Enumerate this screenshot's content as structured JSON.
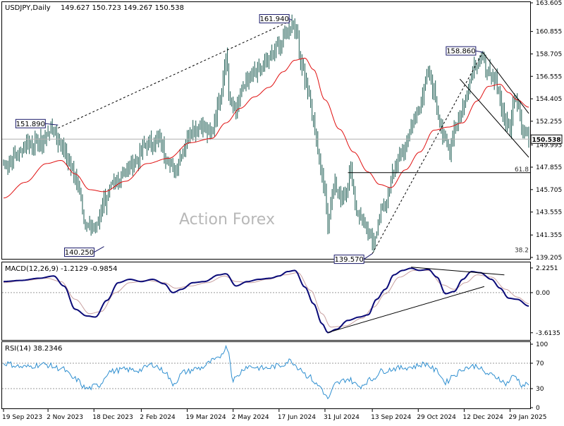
{
  "header": {
    "symbol_line": "USDJPY,Daily",
    "ohlc_line": "149.627 150.723 149.267 150.538"
  },
  "watermark": "Action Forex",
  "colors": {
    "candle": "#1a5a50",
    "ma": "#e01010",
    "macd": "#0a0a78",
    "signal": "#c8a0a0",
    "rsi": "#2f8fd0",
    "guide": "#000000",
    "axis_text": "#000000",
    "grid": "#c8c8c8"
  },
  "chart_data": [
    {
      "type": "line",
      "name": "price-panel",
      "title": "USDJPY,Daily",
      "indicator_label": "",
      "ylim": [
        139.205,
        163.6
      ],
      "y_ticks": [
        "163.605",
        "160.855",
        "158.705",
        "156.555",
        "154.405",
        "152.255",
        "149.995",
        "147.855",
        "145.705",
        "143.555",
        "141.355",
        "139.205"
      ],
      "current_value": "150.538",
      "x_labels": [
        "19 Sep 2023",
        "2 Nov 2023",
        "18 Dec 2023",
        "2 Feb 2024",
        "19 Mar 2024",
        "2 May 2024",
        "17 Jun 2024",
        "31 Jul 2024",
        "13 Sep 2024",
        "29 Oct 2024",
        "12 Dec 2024",
        "29 Jan 2025"
      ],
      "x_label_index": [
        0,
        31,
        63,
        96,
        128,
        160,
        192,
        224,
        257,
        289,
        321,
        353
      ],
      "bars": 367,
      "close_anchors": [
        [
          0,
          148.2
        ],
        [
          8,
          148.8
        ],
        [
          16,
          150.1
        ],
        [
          26,
          150.2
        ],
        [
          34,
          151.6
        ],
        [
          40,
          150.0
        ],
        [
          46,
          148.3
        ],
        [
          52,
          146.0
        ],
        [
          58,
          142.2
        ],
        [
          64,
          141.9
        ],
        [
          70,
          144.6
        ],
        [
          77,
          146.0
        ],
        [
          84,
          147.6
        ],
        [
          92,
          148.4
        ],
        [
          100,
          150.1
        ],
        [
          108,
          150.5
        ],
        [
          114,
          148.8
        ],
        [
          119,
          147.4
        ],
        [
          124,
          149.2
        ],
        [
          130,
          151.4
        ],
        [
          137,
          151.8
        ],
        [
          144,
          151.0
        ],
        [
          151,
          154.5
        ],
        [
          155,
          158.5
        ],
        [
          158,
          154.0
        ],
        [
          162,
          153.5
        ],
        [
          168,
          155.7
        ],
        [
          176,
          156.8
        ],
        [
          184,
          158.1
        ],
        [
          192,
          159.4
        ],
        [
          198,
          160.9
        ],
        [
          201,
          161.7
        ],
        [
          204,
          160.8
        ],
        [
          208,
          157.6
        ],
        [
          212,
          155.2
        ],
        [
          216,
          152.2
        ],
        [
          221,
          147.8
        ],
        [
          224,
          145.8
        ],
        [
          226,
          142.3
        ],
        [
          230,
          146.5
        ],
        [
          234,
          144.9
        ],
        [
          238,
          145.5
        ],
        [
          242,
          147.3
        ],
        [
          246,
          143.8
        ],
        [
          250,
          142.9
        ],
        [
          254,
          141.5
        ],
        [
          257,
          140.8
        ],
        [
          261,
          142.0
        ],
        [
          264,
          144.1
        ],
        [
          268,
          145.0
        ],
        [
          272,
          147.7
        ],
        [
          278,
          149.2
        ],
        [
          284,
          151.6
        ],
        [
          288,
          153.0
        ],
        [
          292,
          154.8
        ],
        [
          296,
          156.9
        ],
        [
          300,
          155.2
        ],
        [
          303,
          152.9
        ],
        [
          307,
          150.3
        ],
        [
          311,
          149.8
        ],
        [
          315,
          152.0
        ],
        [
          320,
          153.5
        ],
        [
          324,
          155.8
        ],
        [
          328,
          157.6
        ],
        [
          332,
          158.4
        ],
        [
          336,
          157.6
        ],
        [
          340,
          156.2
        ],
        [
          344,
          155.8
        ],
        [
          347,
          153.6
        ],
        [
          350,
          152.1
        ],
        [
          353,
          151.6
        ],
        [
          356,
          155.0
        ],
        [
          359,
          153.9
        ],
        [
          362,
          151.4
        ],
        [
          366,
          150.5
        ]
      ],
      "ma_anchors": [
        [
          0,
          144.9
        ],
        [
          15,
          146.4
        ],
        [
          30,
          148.2
        ],
        [
          40,
          148.5
        ],
        [
          50,
          147.2
        ],
        [
          60,
          145.7
        ],
        [
          70,
          145.5
        ],
        [
          85,
          146.5
        ],
        [
          100,
          148.2
        ],
        [
          115,
          148.7
        ],
        [
          130,
          150.2
        ],
        [
          145,
          150.6
        ],
        [
          155,
          152.1
        ],
        [
          165,
          153.5
        ],
        [
          175,
          154.6
        ],
        [
          185,
          155.5
        ],
        [
          195,
          157.0
        ],
        [
          203,
          158.1
        ],
        [
          210,
          158.3
        ],
        [
          216,
          157.2
        ],
        [
          224,
          154.3
        ],
        [
          234,
          151.5
        ],
        [
          244,
          149.3
        ],
        [
          254,
          147.4
        ],
        [
          262,
          146.2
        ],
        [
          270,
          145.9
        ],
        [
          280,
          147.6
        ],
        [
          290,
          149.3
        ],
        [
          300,
          151.4
        ],
        [
          310,
          151.7
        ],
        [
          320,
          152.1
        ],
        [
          330,
          154.2
        ],
        [
          338,
          155.6
        ],
        [
          346,
          155.8
        ],
        [
          352,
          155.0
        ],
        [
          358,
          154.3
        ],
        [
          366,
          153.6
        ]
      ],
      "annotations": [
        {
          "label": "161.940",
          "value": 161.94,
          "index": 201
        },
        {
          "label": "151.890",
          "value": 151.89,
          "index": 38
        },
        {
          "label": "140.250",
          "value": 140.25,
          "index": 70
        },
        {
          "label": "139.570",
          "value": 139.57,
          "index": 257
        },
        {
          "label": "158.860",
          "value": 158.86,
          "index": 334
        }
      ],
      "fib_labels": [
        {
          "label": "61.8",
          "value": 147.33
        },
        {
          "label": "38.2",
          "value": 139.57
        }
      ],
      "horizontal_line_value": 150.538
    },
    {
      "type": "line",
      "name": "macd-panel",
      "title": "MACD(12,26,9) -1.2129 -0.9854",
      "ylim": [
        -4.2,
        2.6
      ],
      "y_ticks": [
        "2.2251",
        "0.00",
        "-3.6135"
      ],
      "series": [
        {
          "name": "MACD",
          "anchors": [
            [
              0,
              1.0
            ],
            [
              12,
              1.1
            ],
            [
              25,
              1.3
            ],
            [
              35,
              1.5
            ],
            [
              42,
              0.6
            ],
            [
              50,
              -1.5
            ],
            [
              58,
              -2.1
            ],
            [
              64,
              -2.2
            ],
            [
              72,
              -0.7
            ],
            [
              80,
              0.9
            ],
            [
              88,
              1.2
            ],
            [
              96,
              1.0
            ],
            [
              104,
              1.2
            ],
            [
              112,
              0.8
            ],
            [
              118,
              0.0
            ],
            [
              124,
              0.3
            ],
            [
              132,
              0.9
            ],
            [
              140,
              1.0
            ],
            [
              150,
              1.6
            ],
            [
              155,
              1.7
            ],
            [
              162,
              0.6
            ],
            [
              170,
              1.0
            ],
            [
              178,
              1.2
            ],
            [
              186,
              1.3
            ],
            [
              192,
              1.5
            ],
            [
              198,
              1.9
            ],
            [
              203,
              2.0
            ],
            [
              210,
              0.5
            ],
            [
              216,
              -1.0
            ],
            [
              222,
              -2.8
            ],
            [
              226,
              -3.6
            ],
            [
              232,
              -3.3
            ],
            [
              240,
              -2.5
            ],
            [
              248,
              -2.2
            ],
            [
              254,
              -2.0
            ],
            [
              260,
              -0.6
            ],
            [
              266,
              0.3
            ],
            [
              272,
              1.6
            ],
            [
              278,
              2.0
            ],
            [
              284,
              2.2
            ],
            [
              290,
              2.0
            ],
            [
              296,
              2.1
            ],
            [
              302,
              1.4
            ],
            [
              308,
              -0.1
            ],
            [
              314,
              0.1
            ],
            [
              320,
              1.2
            ],
            [
              326,
              1.9
            ],
            [
              332,
              1.8
            ],
            [
              340,
              1.2
            ],
            [
              346,
              0.4
            ],
            [
              352,
              -0.5
            ],
            [
              358,
              -0.6
            ],
            [
              366,
              -1.21
            ]
          ]
        },
        {
          "name": "Signal",
          "anchors": [
            [
              0,
              0.9
            ],
            [
              15,
              1.1
            ],
            [
              30,
              1.3
            ],
            [
              40,
              1.0
            ],
            [
              50,
              -0.6
            ],
            [
              60,
              -1.9
            ],
            [
              68,
              -1.7
            ],
            [
              78,
              0.0
            ],
            [
              88,
              0.9
            ],
            [
              100,
              1.1
            ],
            [
              112,
              0.9
            ],
            [
              120,
              0.4
            ],
            [
              130,
              0.6
            ],
            [
              142,
              0.9
            ],
            [
              154,
              1.5
            ],
            [
              162,
              1.0
            ],
            [
              172,
              0.9
            ],
            [
              184,
              1.2
            ],
            [
              196,
              1.6
            ],
            [
              205,
              1.8
            ],
            [
              214,
              0.2
            ],
            [
              222,
              -1.9
            ],
            [
              228,
              -3.1
            ],
            [
              238,
              -3.0
            ],
            [
              250,
              -2.3
            ],
            [
              258,
              -1.3
            ],
            [
              266,
              -0.1
            ],
            [
              276,
              1.4
            ],
            [
              286,
              2.0
            ],
            [
              296,
              2.0
            ],
            [
              306,
              0.7
            ],
            [
              314,
              0.3
            ],
            [
              322,
              0.9
            ],
            [
              330,
              1.6
            ],
            [
              340,
              1.4
            ],
            [
              350,
              0.3
            ],
            [
              358,
              -0.4
            ],
            [
              366,
              -0.99
            ]
          ]
        }
      ]
    },
    {
      "type": "line",
      "name": "rsi-panel",
      "title": "RSI(14) 38.2346",
      "ylim": [
        0,
        100
      ],
      "y_ticks": [
        "100",
        "70",
        "30",
        "0"
      ],
      "series": [
        {
          "name": "RSI",
          "anchors": [
            [
              0,
              70
            ],
            [
              14,
              64
            ],
            [
              28,
              68
            ],
            [
              40,
              62
            ],
            [
              50,
              45
            ],
            [
              58,
              30
            ],
            [
              66,
              35
            ],
            [
              74,
              57
            ],
            [
              84,
              60
            ],
            [
              94,
              59
            ],
            [
              104,
              68
            ],
            [
              112,
              58
            ],
            [
              118,
              38
            ],
            [
              126,
              56
            ],
            [
              136,
              62
            ],
            [
              148,
              75
            ],
            [
              156,
              95
            ],
            [
              160,
              45
            ],
            [
              170,
              65
            ],
            [
              182,
              62
            ],
            [
              192,
              66
            ],
            [
              200,
              74
            ],
            [
              206,
              63
            ],
            [
              212,
              50
            ],
            [
              220,
              34
            ],
            [
              226,
              15
            ],
            [
              232,
              38
            ],
            [
              240,
              45
            ],
            [
              248,
              34
            ],
            [
              256,
              44
            ],
            [
              264,
              58
            ],
            [
              274,
              62
            ],
            [
              284,
              64
            ],
            [
              294,
              69
            ],
            [
              302,
              58
            ],
            [
              308,
              40
            ],
            [
              314,
              52
            ],
            [
              322,
              63
            ],
            [
              330,
              66
            ],
            [
              336,
              54
            ],
            [
              344,
              48
            ],
            [
              350,
              38
            ],
            [
              356,
              50
            ],
            [
              362,
              35
            ],
            [
              366,
              38.2
            ]
          ]
        }
      ]
    }
  ]
}
